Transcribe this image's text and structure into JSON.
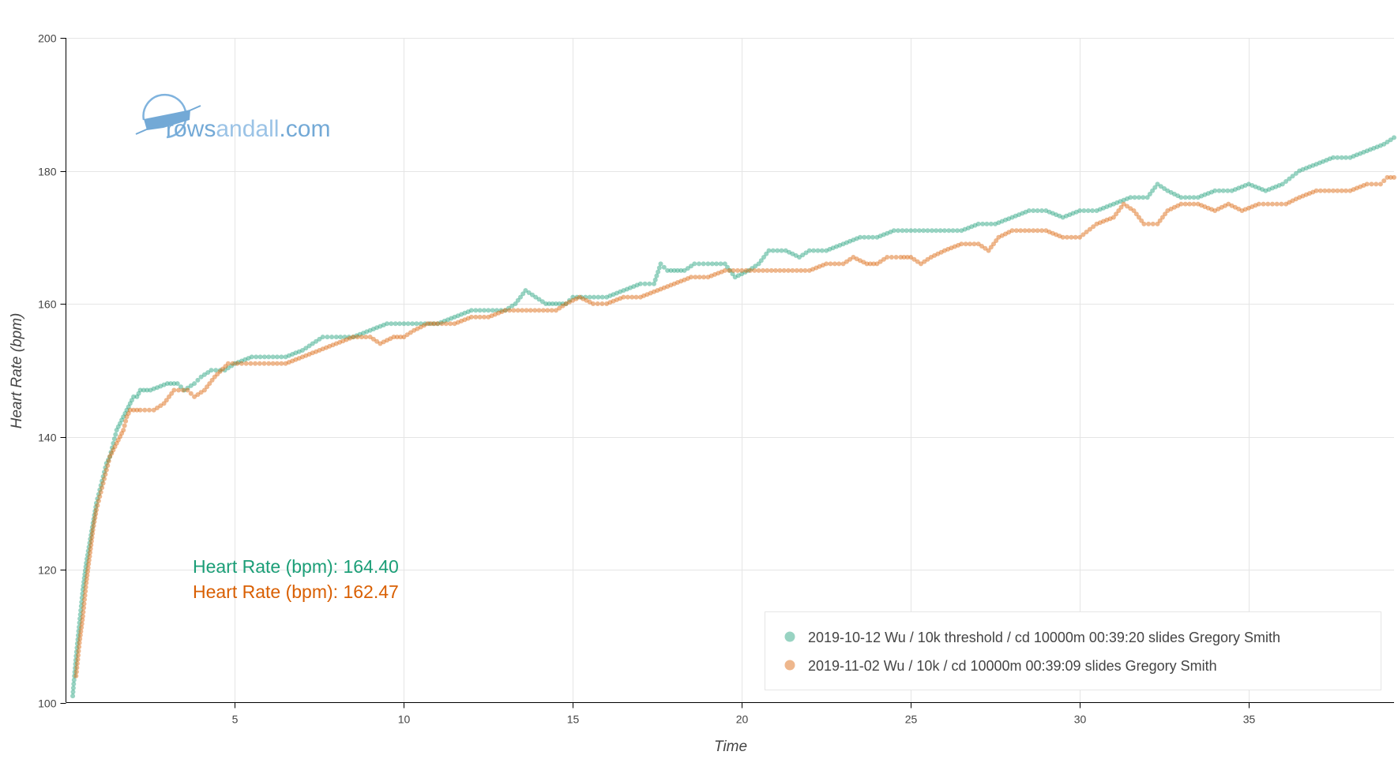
{
  "logo": {
    "text_part1": "rows",
    "text_part2": "andall",
    "text_part3": ".com"
  },
  "summary": [
    {
      "label": "Heart Rate (bpm): 164.40",
      "color": "#1b9e77"
    },
    {
      "label": "Heart Rate (bpm): 162.47",
      "color": "#d95f02"
    }
  ],
  "chart_data": {
    "type": "scatter",
    "xlabel": "Time",
    "ylabel": "Heart Rate (bpm)",
    "xlim": [
      0,
      39.3
    ],
    "ylim": [
      100,
      200
    ],
    "xticks": [
      5,
      10,
      15,
      20,
      25,
      30,
      35
    ],
    "yticks": [
      100,
      120,
      140,
      160,
      180,
      200
    ],
    "grid": true,
    "legend_position": "bottom-right",
    "series": [
      {
        "name": "2019-10-12 Wu / 10k threshold / cd 10000m 00:39:20 slides Gregory Smith",
        "color": "#1b9e77",
        "points": [
          [
            0.2,
            101
          ],
          [
            0.3,
            107
          ],
          [
            0.4,
            112
          ],
          [
            0.5,
            117
          ],
          [
            0.6,
            121
          ],
          [
            0.7,
            124
          ],
          [
            0.8,
            127
          ],
          [
            0.9,
            130
          ],
          [
            1.0,
            132
          ],
          [
            1.1,
            134
          ],
          [
            1.2,
            136
          ],
          [
            1.3,
            137
          ],
          [
            1.4,
            139
          ],
          [
            1.5,
            141
          ],
          [
            1.6,
            142
          ],
          [
            1.7,
            143
          ],
          [
            1.8,
            144
          ],
          [
            1.9,
            145
          ],
          [
            2.0,
            146
          ],
          [
            2.1,
            146
          ],
          [
            2.2,
            147
          ],
          [
            2.5,
            147
          ],
          [
            3.0,
            148
          ],
          [
            3.3,
            148
          ],
          [
            3.5,
            147
          ],
          [
            3.8,
            148
          ],
          [
            4.0,
            149
          ],
          [
            4.3,
            150
          ],
          [
            4.7,
            150
          ],
          [
            5.0,
            151
          ],
          [
            5.5,
            152
          ],
          [
            6.0,
            152
          ],
          [
            6.5,
            152
          ],
          [
            7.0,
            153
          ],
          [
            7.3,
            154
          ],
          [
            7.6,
            155
          ],
          [
            8.0,
            155
          ],
          [
            8.5,
            155
          ],
          [
            9.0,
            156
          ],
          [
            9.5,
            157
          ],
          [
            10.0,
            157
          ],
          [
            10.5,
            157
          ],
          [
            11.0,
            157
          ],
          [
            11.5,
            158
          ],
          [
            12.0,
            159
          ],
          [
            12.5,
            159
          ],
          [
            13.0,
            159
          ],
          [
            13.3,
            160
          ],
          [
            13.6,
            162
          ],
          [
            13.9,
            161
          ],
          [
            14.2,
            160
          ],
          [
            14.5,
            160
          ],
          [
            14.8,
            160
          ],
          [
            15.0,
            161
          ],
          [
            15.5,
            161
          ],
          [
            16.0,
            161
          ],
          [
            16.5,
            162
          ],
          [
            17.0,
            163
          ],
          [
            17.4,
            163
          ],
          [
            17.6,
            166
          ],
          [
            17.8,
            165
          ],
          [
            18.0,
            165
          ],
          [
            18.3,
            165
          ],
          [
            18.6,
            166
          ],
          [
            19.0,
            166
          ],
          [
            19.5,
            166
          ],
          [
            19.8,
            164
          ],
          [
            20.2,
            165
          ],
          [
            20.5,
            166
          ],
          [
            20.8,
            168
          ],
          [
            21.3,
            168
          ],
          [
            21.7,
            167
          ],
          [
            22.0,
            168
          ],
          [
            22.5,
            168
          ],
          [
            23.0,
            169
          ],
          [
            23.5,
            170
          ],
          [
            24.0,
            170
          ],
          [
            24.5,
            171
          ],
          [
            25.0,
            171
          ],
          [
            25.5,
            171
          ],
          [
            26.0,
            171
          ],
          [
            26.5,
            171
          ],
          [
            27.0,
            172
          ],
          [
            27.5,
            172
          ],
          [
            28.0,
            173
          ],
          [
            28.5,
            174
          ],
          [
            29.0,
            174
          ],
          [
            29.5,
            173
          ],
          [
            30.0,
            174
          ],
          [
            30.5,
            174
          ],
          [
            31.0,
            175
          ],
          [
            31.5,
            176
          ],
          [
            32.0,
            176
          ],
          [
            32.3,
            178
          ],
          [
            32.6,
            177
          ],
          [
            33.0,
            176
          ],
          [
            33.5,
            176
          ],
          [
            34.0,
            177
          ],
          [
            34.5,
            177
          ],
          [
            35.0,
            178
          ],
          [
            35.5,
            177
          ],
          [
            36.0,
            178
          ],
          [
            36.5,
            180
          ],
          [
            37.0,
            181
          ],
          [
            37.5,
            182
          ],
          [
            38.0,
            182
          ],
          [
            38.5,
            183
          ],
          [
            39.0,
            184
          ],
          [
            39.3,
            185
          ]
        ]
      },
      {
        "name": "2019-11-02 Wu / 10k / cd 10000m 00:39:09 slides Gregory Smith",
        "color": "#d95f02",
        "points": [
          [
            0.3,
            104
          ],
          [
            0.4,
            109
          ],
          [
            0.5,
            113
          ],
          [
            0.6,
            118
          ],
          [
            0.7,
            122
          ],
          [
            0.8,
            126
          ],
          [
            0.9,
            129
          ],
          [
            1.0,
            131
          ],
          [
            1.1,
            133
          ],
          [
            1.2,
            135
          ],
          [
            1.3,
            137
          ],
          [
            1.4,
            138
          ],
          [
            1.5,
            139
          ],
          [
            1.6,
            140
          ],
          [
            1.7,
            141
          ],
          [
            1.8,
            143
          ],
          [
            1.9,
            144
          ],
          [
            2.2,
            144
          ],
          [
            2.6,
            144
          ],
          [
            2.9,
            145
          ],
          [
            3.2,
            147
          ],
          [
            3.6,
            147
          ],
          [
            3.8,
            146
          ],
          [
            4.1,
            147
          ],
          [
            4.4,
            149
          ],
          [
            4.8,
            151
          ],
          [
            5.2,
            151
          ],
          [
            5.6,
            151
          ],
          [
            6.0,
            151
          ],
          [
            6.5,
            151
          ],
          [
            7.0,
            152
          ],
          [
            7.5,
            153
          ],
          [
            8.0,
            154
          ],
          [
            8.5,
            155
          ],
          [
            9.0,
            155
          ],
          [
            9.3,
            154
          ],
          [
            9.7,
            155
          ],
          [
            10.0,
            155
          ],
          [
            10.3,
            156
          ],
          [
            10.7,
            157
          ],
          [
            11.0,
            157
          ],
          [
            11.5,
            157
          ],
          [
            12.0,
            158
          ],
          [
            12.5,
            158
          ],
          [
            13.0,
            159
          ],
          [
            13.5,
            159
          ],
          [
            14.0,
            159
          ],
          [
            14.5,
            159
          ],
          [
            14.8,
            160
          ],
          [
            15.2,
            161
          ],
          [
            15.6,
            160
          ],
          [
            16.0,
            160
          ],
          [
            16.5,
            161
          ],
          [
            17.0,
            161
          ],
          [
            17.5,
            162
          ],
          [
            18.0,
            163
          ],
          [
            18.5,
            164
          ],
          [
            19.0,
            164
          ],
          [
            19.5,
            165
          ],
          [
            20.0,
            165
          ],
          [
            20.5,
            165
          ],
          [
            21.0,
            165
          ],
          [
            21.5,
            165
          ],
          [
            22.0,
            165
          ],
          [
            22.5,
            166
          ],
          [
            23.0,
            166
          ],
          [
            23.3,
            167
          ],
          [
            23.7,
            166
          ],
          [
            24.0,
            166
          ],
          [
            24.3,
            167
          ],
          [
            24.7,
            167
          ],
          [
            25.0,
            167
          ],
          [
            25.3,
            166
          ],
          [
            25.6,
            167
          ],
          [
            26.0,
            168
          ],
          [
            26.5,
            169
          ],
          [
            27.0,
            169
          ],
          [
            27.3,
            168
          ],
          [
            27.6,
            170
          ],
          [
            28.0,
            171
          ],
          [
            28.5,
            171
          ],
          [
            29.0,
            171
          ],
          [
            29.5,
            170
          ],
          [
            30.0,
            170
          ],
          [
            30.5,
            172
          ],
          [
            31.0,
            173
          ],
          [
            31.3,
            175
          ],
          [
            31.6,
            174
          ],
          [
            31.9,
            172
          ],
          [
            32.3,
            172
          ],
          [
            32.6,
            174
          ],
          [
            33.0,
            175
          ],
          [
            33.5,
            175
          ],
          [
            34.0,
            174
          ],
          [
            34.4,
            175
          ],
          [
            34.8,
            174
          ],
          [
            35.3,
            175
          ],
          [
            35.7,
            175
          ],
          [
            36.1,
            175
          ],
          [
            36.5,
            176
          ],
          [
            37.0,
            177
          ],
          [
            37.5,
            177
          ],
          [
            38.0,
            177
          ],
          [
            38.5,
            178
          ],
          [
            38.9,
            178
          ],
          [
            39.1,
            179
          ],
          [
            39.3,
            179
          ]
        ]
      }
    ]
  }
}
